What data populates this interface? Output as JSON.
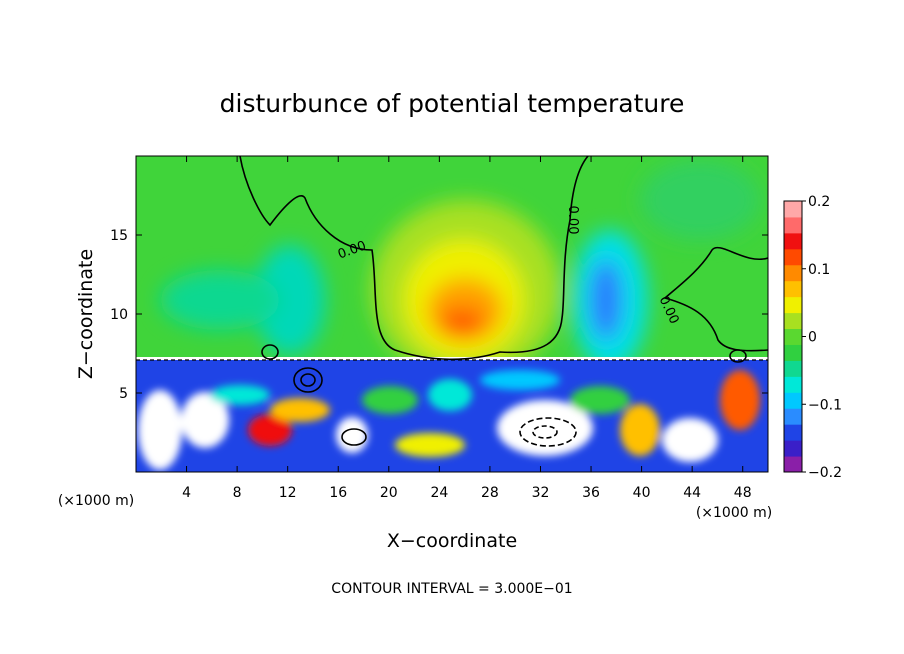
{
  "chart_data": {
    "type": "heatmap",
    "title": "disturbunce of potential temperature",
    "xlabel": "X−coordinate",
    "ylabel": "Z−coordinate",
    "x_unit_left": "(×1000 m)",
    "x_unit_right": "(×1000 m)",
    "xlim": [
      0,
      50
    ],
    "ylim": [
      0,
      20
    ],
    "x_ticks": [
      4,
      8,
      12,
      16,
      20,
      24,
      28,
      32,
      36,
      40,
      44,
      48
    ],
    "y_ticks": [
      5,
      10,
      15
    ],
    "colorbar": {
      "range": [
        -0.2,
        0.2
      ],
      "tick_labels": [
        {
          "value": 0.2,
          "label": "0.2"
        },
        {
          "value": 0.1,
          "label": "0.1"
        },
        {
          "value": 0.0,
          "label": "0"
        },
        {
          "value": -0.1,
          "label": "−0.1"
        },
        {
          "value": -0.2,
          "label": "−0.2"
        }
      ],
      "colors": [
        "#8a1fa8",
        "#3a1fc8",
        "#1f44e6",
        "#2a8cff",
        "#00c8ff",
        "#00e8d8",
        "#10d890",
        "#30d040",
        "#5ad830",
        "#a8e020",
        "#f0f000",
        "#ffc000",
        "#ff8a00",
        "#ff4a00",
        "#f01010",
        "#ff6a6a",
        "#ffa8a8"
      ]
    },
    "contour_label": "0.00",
    "footer": "CONTOUR INTERVAL = 3.000E−01",
    "features": [
      {
        "name": "warm-anomaly",
        "x": 25.5,
        "z": 10.5,
        "value": 0.13
      },
      {
        "name": "cool-column-left",
        "x": 13,
        "z": 11,
        "value": -0.07
      },
      {
        "name": "cool-column-right",
        "x": 38,
        "z": 11,
        "value": -0.13
      },
      {
        "name": "turbulent-layer",
        "z_top": 7.3,
        "value_range": [
          -0.2,
          0.2
        ]
      }
    ]
  }
}
